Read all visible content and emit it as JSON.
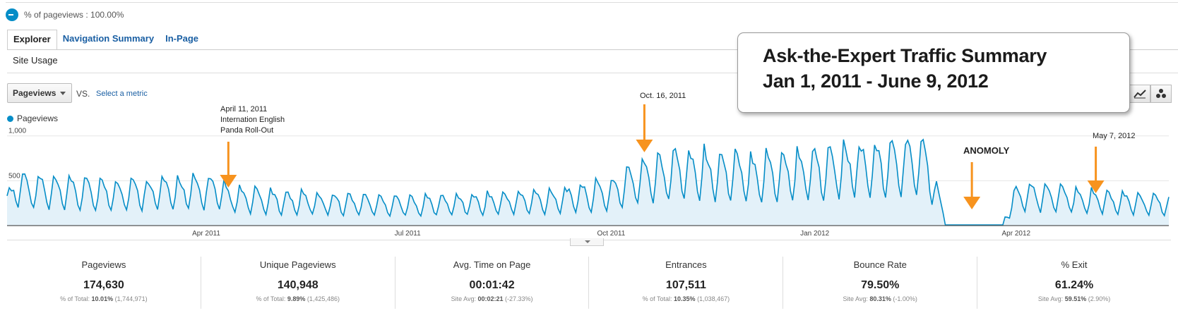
{
  "segment": {
    "label": "% of pageviews : 100.00%"
  },
  "tabs": [
    {
      "label": "Explorer",
      "active": true
    },
    {
      "label": "Navigation Summary",
      "active": false
    },
    {
      "label": "In-Page",
      "active": false
    }
  ],
  "subtab": {
    "label": "Site Usage"
  },
  "controls": {
    "metric": "Pageviews",
    "vs": "VS.",
    "select_metric": "Select a metric",
    "chart_type_buttons": [
      "line-chart-icon",
      "motion-chart-icon"
    ]
  },
  "legend": {
    "label": "Pageviews",
    "color": "#058dc7"
  },
  "callout": {
    "line1": "Ask-the-Expert Traffic Summary",
    "line2": "Jan 1, 2011 - June 9, 2012"
  },
  "annotations": {
    "april": [
      "April 11, 2011",
      "Internation English",
      "Panda Roll-Out"
    ],
    "october": "Oct. 16, 2011",
    "anomaly": "ANOMOLY",
    "may": "May 7, 2012",
    "arrow_color": "#f7931e"
  },
  "chart_data": {
    "type": "area",
    "x_range": [
      "2011-01-01",
      "2012-06-09"
    ],
    "y_ticks": [
      "1,000",
      "500"
    ],
    "x_ticks": [
      "Apr 2011",
      "Jul 2011",
      "Oct 2011",
      "Jan 2012",
      "Apr 2012"
    ],
    "ylim": [
      0,
      1100
    ],
    "series": [
      {
        "name": "Pageviews",
        "color": "#058dc7",
        "weekly_peaks": [
          {
            "date": "2011-01-01",
            "value": 360
          },
          {
            "date": "2011-01-05",
            "value": 620
          },
          {
            "date": "2011-01-25",
            "value": 530
          },
          {
            "date": "2011-02-20",
            "value": 520
          },
          {
            "date": "2011-03-15",
            "value": 540
          },
          {
            "date": "2011-04-05",
            "value": 560
          },
          {
            "date": "2011-04-11",
            "value": 440
          },
          {
            "date": "2011-05-01",
            "value": 390
          },
          {
            "date": "2011-06-01",
            "value": 360
          },
          {
            "date": "2011-07-01",
            "value": 330
          },
          {
            "date": "2011-08-01",
            "value": 360
          },
          {
            "date": "2011-09-01",
            "value": 400
          },
          {
            "date": "2011-10-01",
            "value": 520
          },
          {
            "date": "2011-10-16",
            "value": 780
          },
          {
            "date": "2011-11-01",
            "value": 880
          },
          {
            "date": "2011-12-01",
            "value": 800
          },
          {
            "date": "2012-01-01",
            "value": 870
          },
          {
            "date": "2012-02-01",
            "value": 950
          },
          {
            "date": "2012-02-20",
            "value": 1000
          },
          {
            "date": "2012-03-01",
            "value": 10
          },
          {
            "date": "2012-03-25",
            "value": 10
          },
          {
            "date": "2012-04-01",
            "value": 450
          },
          {
            "date": "2012-04-15",
            "value": 480
          },
          {
            "date": "2012-05-07",
            "value": 400
          },
          {
            "date": "2012-06-09",
            "value": 330
          }
        ]
      }
    ]
  },
  "scorecards": [
    {
      "title": "Pageviews",
      "value": "174,630",
      "sub_prefix": "% of Total:",
      "sub_bold": "10.01%",
      "sub_suffix": "(1,744,971)"
    },
    {
      "title": "Unique Pageviews",
      "value": "140,948",
      "sub_prefix": "% of Total:",
      "sub_bold": "9.89%",
      "sub_suffix": "(1,425,486)"
    },
    {
      "title": "Avg. Time on Page",
      "value": "00:01:42",
      "sub_prefix": "Site Avg:",
      "sub_bold": "00:02:21",
      "sub_suffix": "(-27.33%)"
    },
    {
      "title": "Entrances",
      "value": "107,511",
      "sub_prefix": "% of Total:",
      "sub_bold": "10.35%",
      "sub_suffix": "(1,038,467)"
    },
    {
      "title": "Bounce Rate",
      "value": "79.50%",
      "sub_prefix": "Site Avg:",
      "sub_bold": "80.31%",
      "sub_suffix": "(-1.00%)"
    },
    {
      "title": "% Exit",
      "value": "61.24%",
      "sub_prefix": "Site Avg:",
      "sub_bold": "59.51%",
      "sub_suffix": "(2.90%)"
    }
  ]
}
